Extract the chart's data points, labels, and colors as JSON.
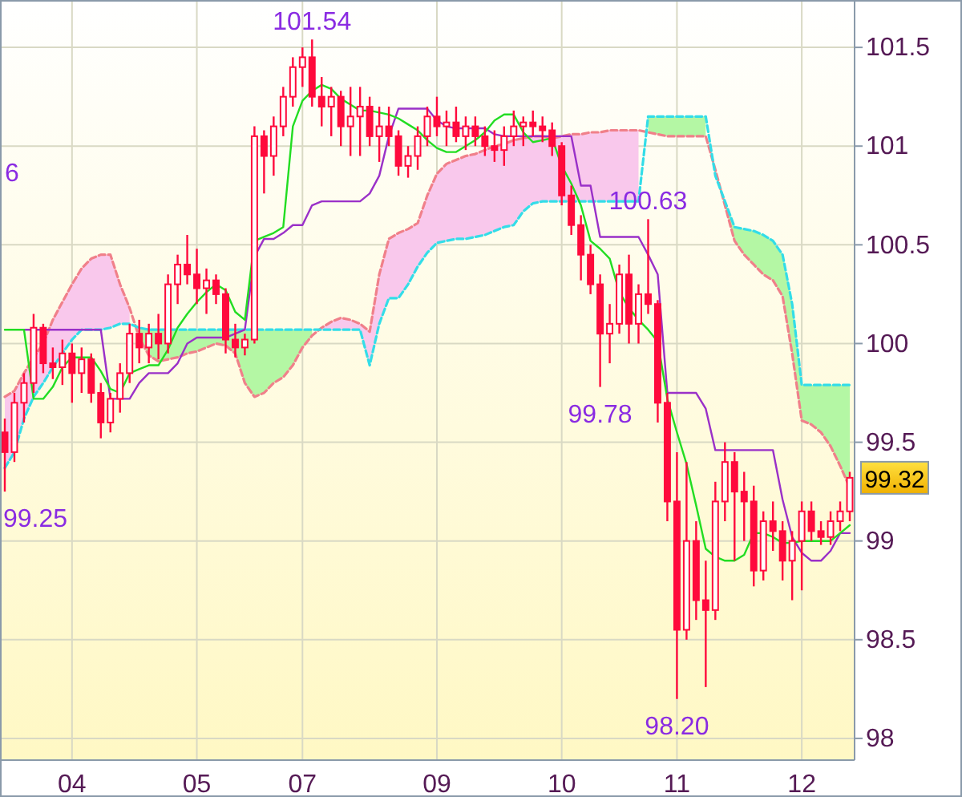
{
  "chart_data": {
    "type": "candlestick",
    "color": "#ff0a3c",
    "categories": [
      null,
      null,
      null,
      null,
      null,
      null,
      null,
      "04",
      null,
      null,
      null,
      null,
      null,
      null,
      null,
      null,
      null,
      null,
      null,
      null,
      "05",
      null,
      null,
      null,
      null,
      null,
      null,
      null,
      null,
      null,
      null,
      "07",
      null,
      null,
      null,
      null,
      null,
      null,
      null,
      null,
      null,
      null,
      null,
      null,
      null,
      "09",
      null,
      null,
      null,
      null,
      null,
      null,
      null,
      null,
      null,
      null,
      null,
      null,
      "10",
      null,
      null,
      null,
      null,
      null,
      null,
      null,
      null,
      null,
      null,
      null,
      "11",
      null,
      null,
      null,
      null,
      null,
      null,
      null,
      null,
      null,
      null,
      null,
      null,
      "12",
      null,
      null,
      null,
      null,
      null
    ],
    "ohlc": [
      [
        99.55,
        99.62,
        99.25,
        99.45
      ],
      [
        99.45,
        99.75,
        99.4,
        99.7
      ],
      [
        99.7,
        99.85,
        99.6,
        99.8
      ],
      [
        99.8,
        100.15,
        99.75,
        100.08
      ],
      [
        100.08,
        100.1,
        99.85,
        99.9
      ],
      [
        99.9,
        99.98,
        99.82,
        99.88
      ],
      [
        99.88,
        100.02,
        99.79,
        99.95
      ],
      [
        99.95,
        100.0,
        99.7,
        99.85
      ],
      [
        99.85,
        99.98,
        99.75,
        99.92
      ],
      [
        99.92,
        99.95,
        99.7,
        99.75
      ],
      [
        99.75,
        99.8,
        99.52,
        99.6
      ],
      [
        99.6,
        99.75,
        99.55,
        99.72
      ],
      [
        99.72,
        99.9,
        99.65,
        99.85
      ],
      [
        99.85,
        100.1,
        99.8,
        100.05
      ],
      [
        100.05,
        100.12,
        99.9,
        99.98
      ],
      [
        99.98,
        100.1,
        99.9,
        100.05
      ],
      [
        100.05,
        100.15,
        99.92,
        100.0
      ],
      [
        100.0,
        100.35,
        99.95,
        100.3
      ],
      [
        100.3,
        100.45,
        100.2,
        100.4
      ],
      [
        100.4,
        100.55,
        100.3,
        100.35
      ],
      [
        100.35,
        100.48,
        100.2,
        100.28
      ],
      [
        100.28,
        100.38,
        100.15,
        100.32
      ],
      [
        100.32,
        100.35,
        100.2,
        100.25
      ],
      [
        100.25,
        100.28,
        99.95,
        100.02
      ],
      [
        100.02,
        100.1,
        99.93,
        99.98
      ],
      [
        99.98,
        100.05,
        99.94,
        100.02
      ],
      [
        100.02,
        101.1,
        100.0,
        101.05
      ],
      [
        101.05,
        101.08,
        100.76,
        100.95
      ],
      [
        100.95,
        101.15,
        100.85,
        101.1
      ],
      [
        101.1,
        101.3,
        101.05,
        101.25
      ],
      [
        101.25,
        101.45,
        101.2,
        101.4
      ],
      [
        101.4,
        101.5,
        101.3,
        101.45
      ],
      [
        101.45,
        101.54,
        101.2,
        101.25
      ],
      [
        101.25,
        101.35,
        101.1,
        101.2
      ],
      [
        101.2,
        101.3,
        101.05,
        101.25
      ],
      [
        101.25,
        101.28,
        101.0,
        101.1
      ],
      [
        101.1,
        101.3,
        100.95,
        101.15
      ],
      [
        101.15,
        101.3,
        100.95,
        101.2
      ],
      [
        101.2,
        101.25,
        101.0,
        101.05
      ],
      [
        101.05,
        101.2,
        100.92,
        101.1
      ],
      [
        101.1,
        101.2,
        101.0,
        101.05
      ],
      [
        101.05,
        101.08,
        100.85,
        100.9
      ],
      [
        100.9,
        101.0,
        100.84,
        100.95
      ],
      [
        100.95,
        101.1,
        100.88,
        101.05
      ],
      [
        101.05,
        101.2,
        101.0,
        101.15
      ],
      [
        101.15,
        101.25,
        101.05,
        101.1
      ],
      [
        101.1,
        101.18,
        101.0,
        101.12
      ],
      [
        101.12,
        101.2,
        101.02,
        101.05
      ],
      [
        101.05,
        101.15,
        100.98,
        101.1
      ],
      [
        101.1,
        101.15,
        101.0,
        101.05
      ],
      [
        101.05,
        101.1,
        100.95,
        101.0
      ],
      [
        101.0,
        101.08,
        100.92,
        100.98
      ],
      [
        100.98,
        101.1,
        100.9,
        101.05
      ],
      [
        101.05,
        101.18,
        101.0,
        101.1
      ],
      [
        101.1,
        101.15,
        101.0,
        101.12
      ],
      [
        101.12,
        101.18,
        101.05,
        101.1
      ],
      [
        101.1,
        101.15,
        101.02,
        101.08
      ],
      [
        101.08,
        101.12,
        100.95,
        101.0
      ],
      [
        101.0,
        101.02,
        100.7,
        100.75
      ],
      [
        100.75,
        100.8,
        100.55,
        100.6
      ],
      [
        100.6,
        100.65,
        100.32,
        100.45
      ],
      [
        100.45,
        100.5,
        100.25,
        100.3
      ],
      [
        100.3,
        100.35,
        99.78,
        100.05
      ],
      [
        100.05,
        100.2,
        99.9,
        100.1
      ],
      [
        100.1,
        100.4,
        100.05,
        100.35
      ],
      [
        100.35,
        100.45,
        100.0,
        100.1
      ],
      [
        100.1,
        100.3,
        100.0,
        100.25
      ],
      [
        100.25,
        100.63,
        100.15,
        100.2
      ],
      [
        100.2,
        100.22,
        99.6,
        99.7
      ],
      [
        99.7,
        99.75,
        99.1,
        99.2
      ],
      [
        99.2,
        99.45,
        98.2,
        98.55
      ],
      [
        98.55,
        99.4,
        98.5,
        99.0
      ],
      [
        99.0,
        99.1,
        98.6,
        98.7
      ],
      [
        98.7,
        98.9,
        98.26,
        98.65
      ],
      [
        98.65,
        99.3,
        98.6,
        99.2
      ],
      [
        99.2,
        99.5,
        99.1,
        99.4
      ],
      [
        99.4,
        99.45,
        98.9,
        99.25
      ],
      [
        99.25,
        99.35,
        99.0,
        99.2
      ],
      [
        99.2,
        99.28,
        98.77,
        98.85
      ],
      [
        98.85,
        99.15,
        98.8,
        99.1
      ],
      [
        99.1,
        99.2,
        98.95,
        99.05
      ],
      [
        99.05,
        99.1,
        98.8,
        98.9
      ],
      [
        98.9,
        99.05,
        98.7,
        99.0
      ],
      [
        99.0,
        99.2,
        98.75,
        99.15
      ],
      [
        99.15,
        99.2,
        99.0,
        99.05
      ],
      [
        99.05,
        99.1,
        98.98,
        99.02
      ],
      [
        99.02,
        99.15,
        98.98,
        99.1
      ],
      [
        99.1,
        99.2,
        99.05,
        99.15
      ],
      [
        99.15,
        99.35,
        99.1,
        99.32
      ]
    ],
    "series": [
      {
        "type": "line",
        "color": "#f0808a",
        "line_style": "dashed",
        "values": [
          99.73,
          99.76,
          99.85,
          99.93,
          100.0,
          100.12,
          100.21,
          100.3,
          100.38,
          100.43,
          100.45,
          100.45,
          100.3,
          100.18,
          100.03,
          99.94,
          99.91,
          99.92,
          99.93,
          99.95,
          99.96,
          99.98,
          100.0,
          99.99,
          99.95,
          99.8,
          99.73,
          99.75,
          99.8,
          99.83,
          99.89,
          99.98,
          100.04,
          100.08,
          100.11,
          100.13,
          100.12,
          100.1,
          100.06,
          100.35,
          100.53,
          100.56,
          100.58,
          100.61,
          100.75,
          100.86,
          100.91,
          100.93,
          100.95,
          100.96,
          100.98,
          101.0,
          101.01,
          101.03,
          101.04,
          101.05,
          101.05,
          101.04,
          101.05,
          101.06,
          101.06,
          101.07,
          101.07,
          101.08,
          101.08,
          101.08,
          101.08,
          101.07,
          101.06,
          101.05,
          101.05,
          101.05,
          101.05,
          101.05,
          100.88,
          100.7,
          100.52,
          100.45,
          100.4,
          100.35,
          100.32,
          100.24,
          99.95,
          99.61,
          99.59,
          99.55,
          99.48,
          99.38,
          99.27
        ]
      },
      {
        "type": "line",
        "color": "#33dde8",
        "line_style": "dashed",
        "values": [
          99.37,
          99.45,
          99.62,
          99.73,
          99.8,
          99.88,
          99.95,
          100.02,
          100.07,
          100.07,
          100.07,
          100.08,
          100.1,
          100.1,
          100.08,
          100.07,
          100.07,
          100.07,
          100.07,
          100.07,
          100.07,
          100.07,
          100.07,
          100.07,
          100.07,
          100.07,
          100.07,
          100.07,
          100.07,
          100.07,
          100.07,
          100.07,
          100.07,
          100.07,
          100.07,
          100.07,
          100.07,
          100.07,
          99.89,
          100.1,
          100.23,
          100.23,
          100.3,
          100.39,
          100.46,
          100.51,
          100.52,
          100.53,
          100.53,
          100.54,
          100.55,
          100.57,
          100.59,
          100.6,
          100.67,
          100.71,
          100.72,
          100.72,
          100.72,
          100.72,
          100.72,
          100.72,
          100.72,
          100.72,
          100.72,
          100.72,
          100.72,
          101.15,
          101.15,
          101.15,
          101.15,
          101.15,
          101.15,
          101.15,
          100.85,
          100.72,
          100.59,
          100.58,
          100.57,
          100.55,
          100.52,
          100.45,
          100.2,
          99.79,
          99.79,
          99.79,
          99.79,
          99.79,
          99.79
        ]
      },
      {
        "type": "line",
        "color": "#9a30c8",
        "line_style": "solid",
        "values": [
          null,
          null,
          100.07,
          100.07,
          100.07,
          100.07,
          100.07,
          100.07,
          100.07,
          100.07,
          100.07,
          99.72,
          99.72,
          99.72,
          99.8,
          99.85,
          99.85,
          99.85,
          99.9,
          100.0,
          100.03,
          100.03,
          100.03,
          100.03,
          100.05,
          100.07,
          100.44,
          100.53,
          100.53,
          100.56,
          100.6,
          100.6,
          100.7,
          100.72,
          100.72,
          100.72,
          100.72,
          100.72,
          100.76,
          100.85,
          101.05,
          101.19,
          101.19,
          101.19,
          101.19,
          101.13,
          101.1,
          101.09,
          101.09,
          101.09,
          101.09,
          101.06,
          101.05,
          101.05,
          101.05,
          101.05,
          101.05,
          101.05,
          101.05,
          101.05,
          100.8,
          100.8,
          100.54,
          100.54,
          100.54,
          100.54,
          100.54,
          100.45,
          100.35,
          99.75,
          99.75,
          99.75,
          99.75,
          99.67,
          99.46,
          99.46,
          99.46,
          99.46,
          99.46,
          99.46,
          99.46,
          99.21,
          99.02,
          98.94,
          98.9,
          98.9,
          98.95,
          99.04,
          99.04
        ]
      },
      {
        "type": "line",
        "color": "#22dd22",
        "line_style": "solid",
        "values": [
          100.07,
          100.07,
          100.07,
          99.72,
          99.72,
          99.78,
          99.88,
          99.93,
          99.93,
          99.93,
          99.86,
          99.77,
          99.75,
          99.85,
          99.87,
          99.89,
          99.89,
          99.97,
          100.08,
          100.15,
          100.21,
          100.26,
          100.3,
          100.27,
          100.16,
          100.12,
          100.52,
          100.54,
          100.56,
          100.59,
          101.1,
          101.23,
          101.28,
          101.31,
          101.29,
          101.24,
          101.21,
          101.18,
          101.18,
          101.17,
          101.16,
          101.14,
          101.11,
          101.08,
          101.03,
          100.99,
          100.97,
          100.97,
          101.0,
          101.03,
          101.07,
          101.13,
          101.16,
          101.16,
          101.07,
          101.02,
          101.03,
          101.04,
          100.9,
          100.81,
          100.7,
          100.52,
          100.48,
          100.43,
          100.26,
          100.18,
          100.12,
          100.07,
          100.01,
          99.72,
          99.55,
          99.39,
          99.18,
          98.96,
          98.92,
          98.9,
          98.9,
          98.93,
          99.04,
          99.04,
          99.02,
          98.99,
          98.99,
          99.0,
          99.0,
          99.0,
          99.0,
          99.04,
          99.08
        ]
      }
    ],
    "ylim": [
      97.89,
      101.74
    ],
    "yticks": [
      98,
      98.5,
      99,
      99.5,
      100,
      100.5,
      101,
      101.5
    ],
    "grid": true,
    "annotations": [
      "6",
      {
        "text": "101.54",
        "y": 101.54
      },
      "99.25",
      {
        "text": "99.78",
        "y": 99.78
      },
      {
        "text": "100.63",
        "y": 100.63
      },
      {
        "text": "98.20",
        "y": 98.2
      },
      "99.32"
    ]
  }
}
